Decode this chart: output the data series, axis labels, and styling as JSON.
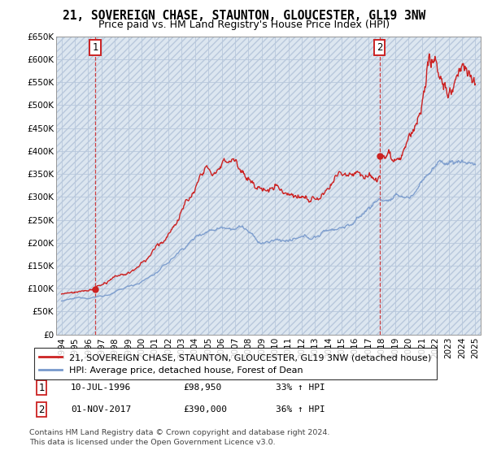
{
  "title": "21, SOVEREIGN CHASE, STAUNTON, GLOUCESTER, GL19 3NW",
  "subtitle": "Price paid vs. HM Land Registry's House Price Index (HPI)",
  "ylabel_values": [
    "£0",
    "£50K",
    "£100K",
    "£150K",
    "£200K",
    "£250K",
    "£300K",
    "£350K",
    "£400K",
    "£450K",
    "£500K",
    "£550K",
    "£600K",
    "£650K"
  ],
  "ylim": [
    0,
    650000
  ],
  "yticks": [
    0,
    50000,
    100000,
    150000,
    200000,
    250000,
    300000,
    350000,
    400000,
    450000,
    500000,
    550000,
    600000,
    650000
  ],
  "xlim_start": 1993.6,
  "xlim_end": 2025.4,
  "xticks": [
    1994,
    1995,
    1996,
    1997,
    1998,
    1999,
    2000,
    2001,
    2002,
    2003,
    2004,
    2005,
    2006,
    2007,
    2008,
    2009,
    2010,
    2011,
    2012,
    2013,
    2014,
    2015,
    2016,
    2017,
    2018,
    2019,
    2020,
    2021,
    2022,
    2023,
    2024,
    2025
  ],
  "point1_year": 1996.53,
  "point1_value": 98950,
  "point1_label": "1",
  "point1_date": "10-JUL-1996",
  "point1_price": "£98,950",
  "point1_hpi": "33% ↑ HPI",
  "point2_year": 2017.83,
  "point2_value": 390000,
  "point2_label": "2",
  "point2_date": "01-NOV-2017",
  "point2_price": "£390,000",
  "point2_hpi": "36% ↑ HPI",
  "line1_color": "#cc2222",
  "line2_color": "#7799cc",
  "vline_color": "#cc2222",
  "legend_line1": "21, SOVEREIGN CHASE, STAUNTON, GLOUCESTER, GL19 3NW (detached house)",
  "legend_line2": "HPI: Average price, detached house, Forest of Dean",
  "footer": "Contains HM Land Registry data © Crown copyright and database right 2024.\nThis data is licensed under the Open Government Licence v3.0.",
  "title_fontsize": 10.5,
  "subtitle_fontsize": 9,
  "tick_fontsize": 7.5,
  "legend_fontsize": 8,
  "annotation_fontsize": 8
}
